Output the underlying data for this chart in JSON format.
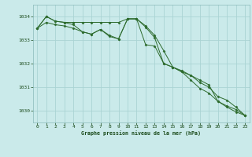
{
  "bg_color": "#caeaea",
  "grid_color": "#aad4d4",
  "line_color": "#2d6b2d",
  "marker_color": "#2d6b2d",
  "xlabel": "Graphe pression niveau de la mer (hPa)",
  "xlabel_color": "#1a4a1a",
  "ytick_color": "#1a4a1a",
  "xtick_color": "#1a4a1a",
  "ylim": [
    1029.5,
    1034.5
  ],
  "xlim": [
    -0.5,
    23.5
  ],
  "yticks": [
    1030,
    1031,
    1032,
    1033,
    1034
  ],
  "xticks": [
    0,
    1,
    2,
    3,
    4,
    5,
    6,
    7,
    8,
    9,
    10,
    11,
    12,
    13,
    14,
    15,
    16,
    17,
    18,
    19,
    20,
    21,
    22,
    23
  ],
  "series": [
    [
      1033.5,
      1034.0,
      1033.8,
      1033.75,
      1033.75,
      1033.75,
      1033.75,
      1033.75,
      1033.75,
      1033.75,
      1033.9,
      1033.9,
      1033.6,
      1033.2,
      1032.55,
      1031.85,
      1031.65,
      1031.5,
      1031.2,
      1031.0,
      1030.6,
      1030.45,
      1030.15,
      1029.8
    ],
    [
      1033.5,
      1034.0,
      1033.8,
      1033.75,
      1033.65,
      1033.35,
      1033.25,
      1033.45,
      1033.15,
      1033.05,
      1033.9,
      1033.9,
      1032.8,
      1032.75,
      1032.0,
      1031.85,
      1031.7,
      1031.5,
      1031.3,
      1031.1,
      1030.4,
      1030.2,
      1030.05,
      1029.8
    ],
    [
      1033.5,
      1033.75,
      1033.65,
      1033.6,
      1033.5,
      1033.35,
      1033.25,
      1033.45,
      1033.2,
      1033.05,
      1033.9,
      1033.9,
      1033.55,
      1033.1,
      1032.0,
      1031.85,
      1031.65,
      1031.3,
      1030.95,
      1030.75,
      1030.4,
      1030.15,
      1029.95,
      1029.8
    ]
  ]
}
